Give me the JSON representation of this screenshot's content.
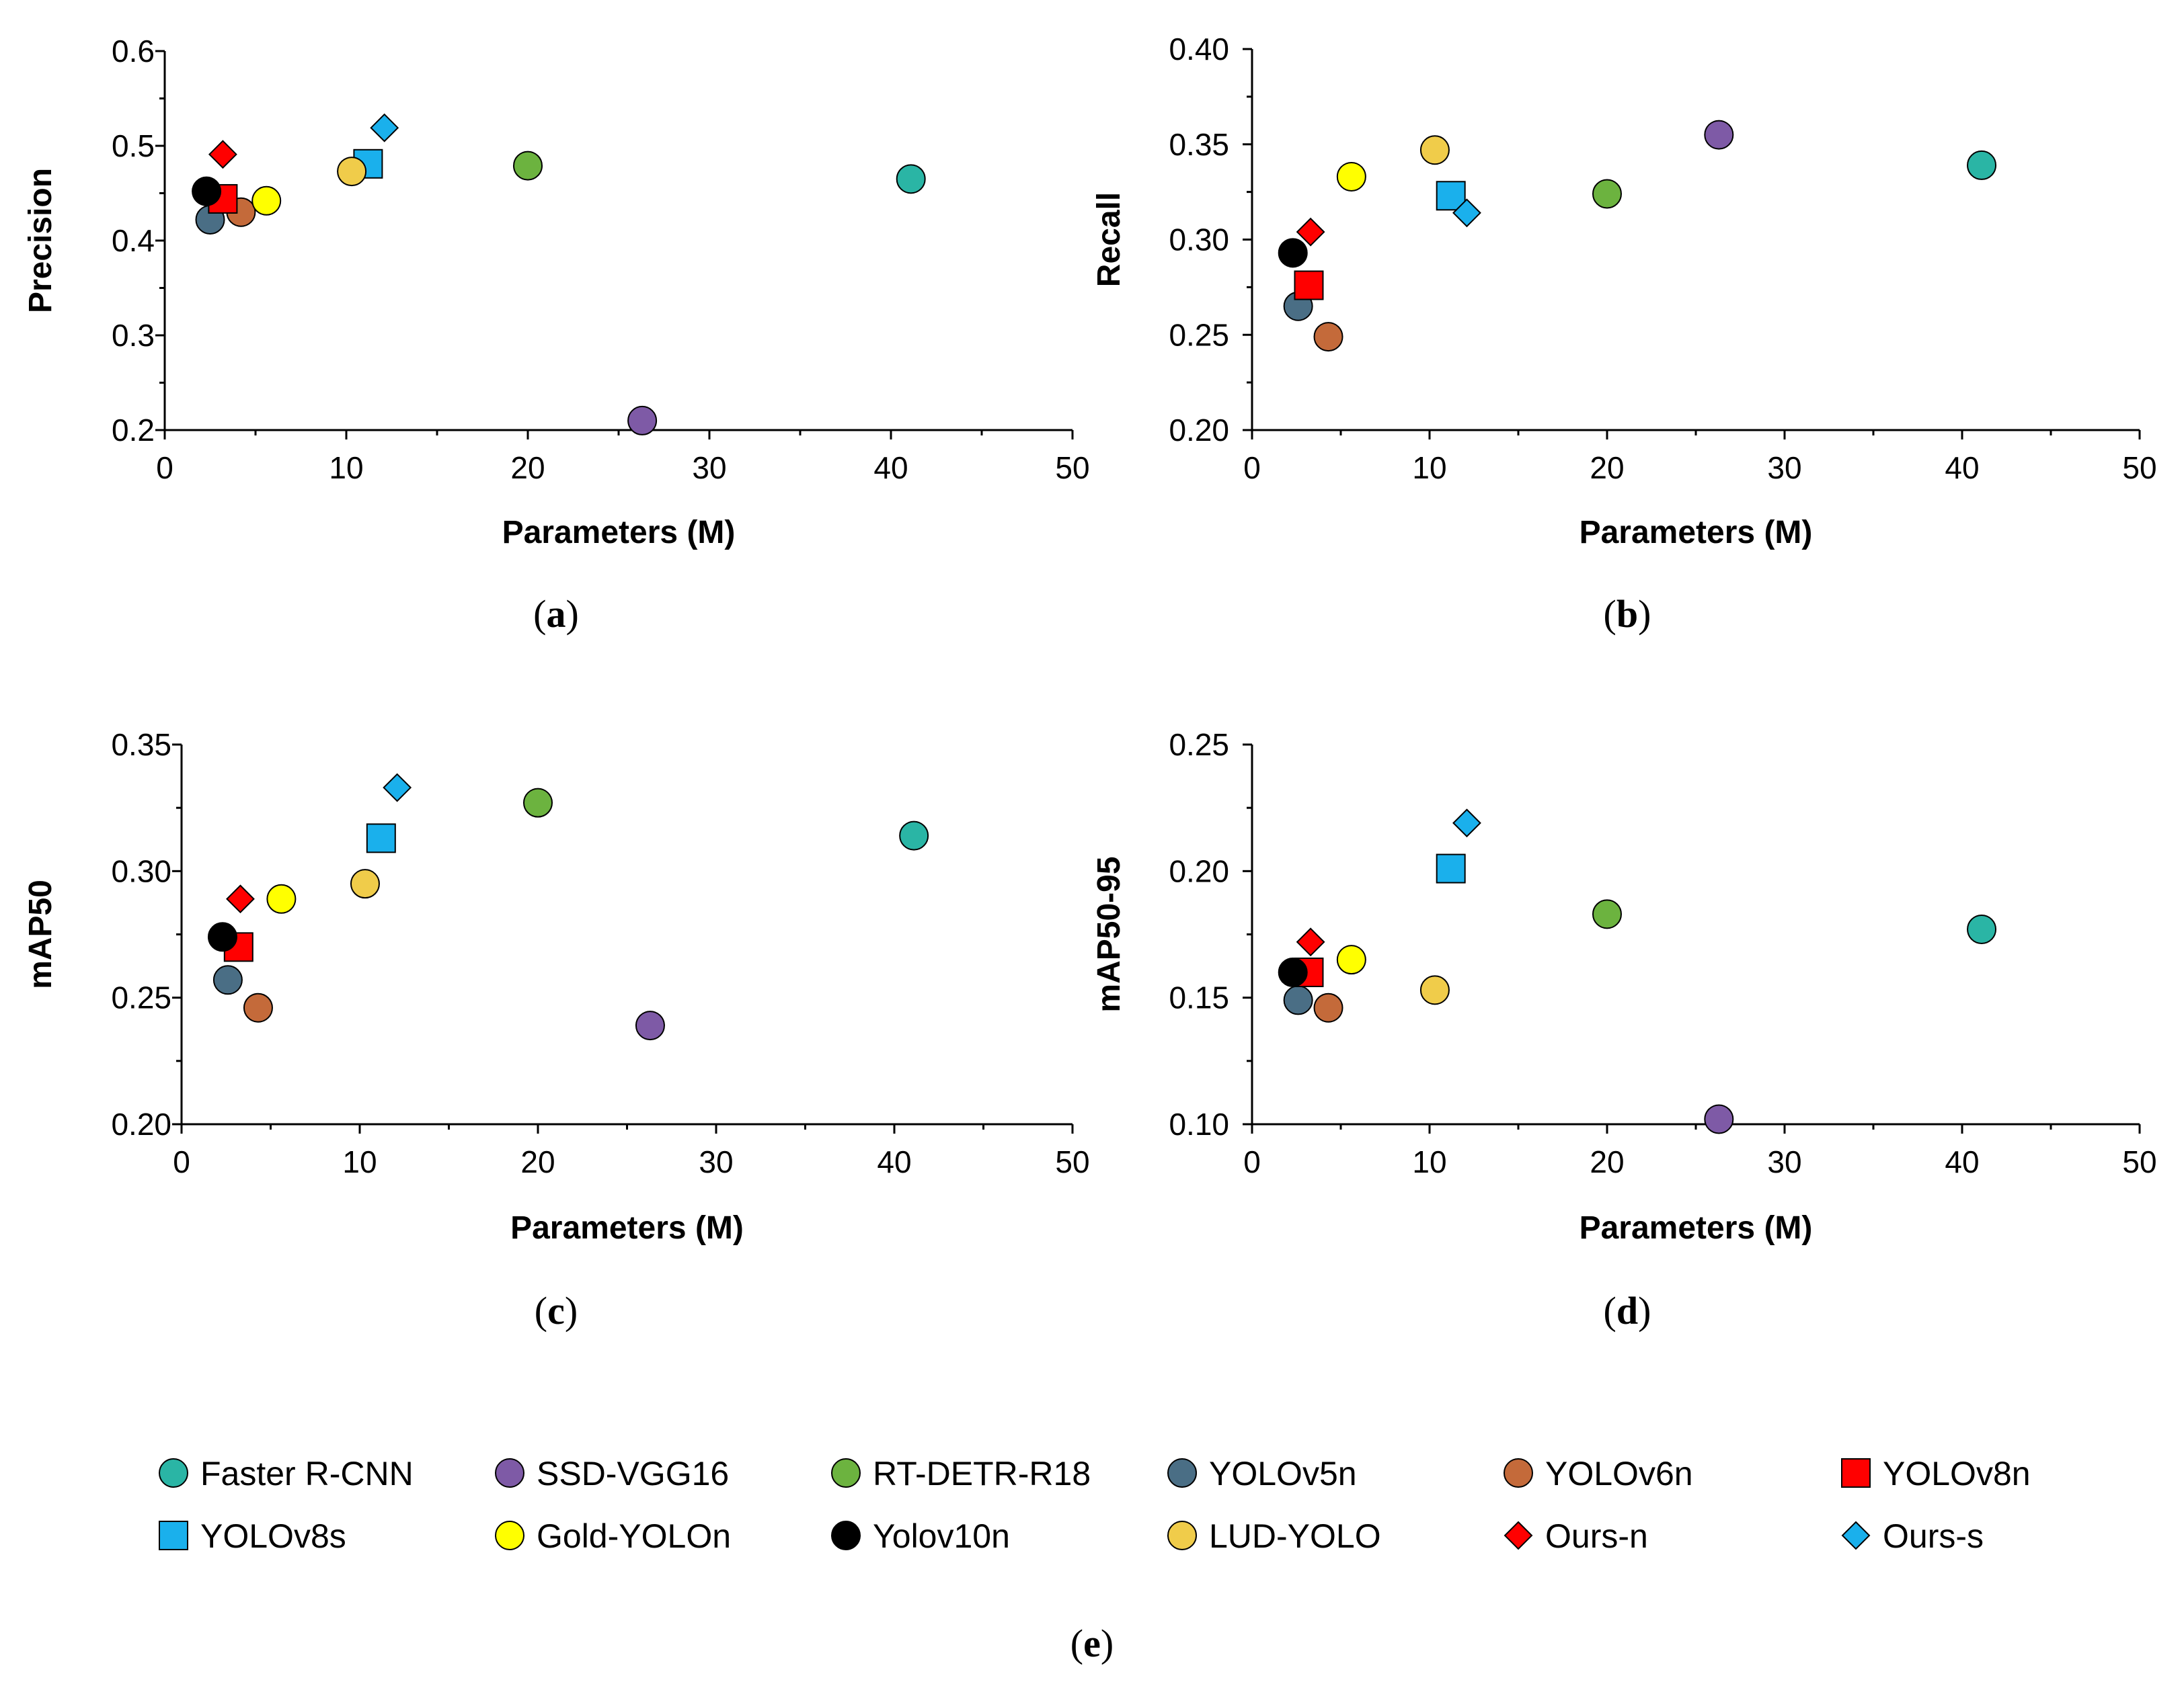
{
  "legend": {
    "label": "(e)",
    "items": [
      {
        "name": "Faster R-CNN",
        "marker": "circle",
        "color": "#2ab5a5"
      },
      {
        "name": "SSD-VGG16",
        "marker": "circle",
        "color": "#7e5aa6"
      },
      {
        "name": "RT-DETR-R18",
        "marker": "circle",
        "color": "#6cb33f"
      },
      {
        "name": "YOLOv5n",
        "marker": "circle",
        "color": "#4a6e85"
      },
      {
        "name": "YOLOv6n",
        "marker": "circle",
        "color": "#c46a3a"
      },
      {
        "name": "YOLOv8n",
        "marker": "square",
        "color": "#ff0000"
      },
      {
        "name": "YOLOv8s",
        "marker": "square",
        "color": "#1ab0ec"
      },
      {
        "name": "Gold-YOLOn",
        "marker": "circle",
        "color": "#ffff00"
      },
      {
        "name": "Yolov10n",
        "marker": "circle",
        "color": "#000000"
      },
      {
        "name": "LUD-YOLO",
        "marker": "circle",
        "color": "#f0cc4a"
      },
      {
        "name": "Ours-n",
        "marker": "diamond",
        "color": "#ff0000"
      },
      {
        "name": "Ours-s",
        "marker": "diamond",
        "color": "#1ab0ec"
      }
    ]
  },
  "chart_data": [
    {
      "type": "scatter",
      "id": "a",
      "label": "(a)",
      "xlabel": "Parameters (M)",
      "ylabel": "Precision",
      "xlim": [
        0,
        50
      ],
      "ylim": [
        0.2,
        0.6
      ],
      "xticks": [
        "0",
        "10",
        "20",
        "30",
        "40",
        "50"
      ],
      "yticks": [
        "0.2",
        "0.3",
        "0.4",
        "0.5",
        "0.6"
      ],
      "series": [
        {
          "name": "Faster R-CNN",
          "x": 41.1,
          "y": 0.465
        },
        {
          "name": "SSD-VGG16",
          "x": 26.3,
          "y": 0.21
        },
        {
          "name": "RT-DETR-R18",
          "x": 20.0,
          "y": 0.479
        },
        {
          "name": "YOLOv5n",
          "x": 2.5,
          "y": 0.422
        },
        {
          "name": "YOLOv6n",
          "x": 4.2,
          "y": 0.43
        },
        {
          "name": "YOLOv8n",
          "x": 3.2,
          "y": 0.444
        },
        {
          "name": "YOLOv8s",
          "x": 11.2,
          "y": 0.481
        },
        {
          "name": "Gold-YOLOn",
          "x": 5.6,
          "y": 0.442
        },
        {
          "name": "Yolov10n",
          "x": 2.3,
          "y": 0.452
        },
        {
          "name": "LUD-YOLO",
          "x": 10.3,
          "y": 0.473
        },
        {
          "name": "Ours-n",
          "x": 3.2,
          "y": 0.491
        },
        {
          "name": "Ours-s",
          "x": 12.1,
          "y": 0.519
        }
      ]
    },
    {
      "type": "scatter",
      "id": "b",
      "label": "(b)",
      "xlabel": "Parameters (M)",
      "ylabel": "Recall",
      "xlim": [
        0,
        50
      ],
      "ylim": [
        0.2,
        0.4
      ],
      "xticks": [
        "0",
        "10",
        "20",
        "30",
        "40",
        "50"
      ],
      "yticks": [
        "0.20",
        "0.25",
        "0.30",
        "0.35",
        "0.40"
      ],
      "series": [
        {
          "name": "Faster R-CNN",
          "x": 41.1,
          "y": 0.339
        },
        {
          "name": "SSD-VGG16",
          "x": 26.3,
          "y": 0.355
        },
        {
          "name": "RT-DETR-R18",
          "x": 20.0,
          "y": 0.324
        },
        {
          "name": "YOLOv5n",
          "x": 2.6,
          "y": 0.265
        },
        {
          "name": "YOLOv6n",
          "x": 4.3,
          "y": 0.249
        },
        {
          "name": "YOLOv8n",
          "x": 3.2,
          "y": 0.276
        },
        {
          "name": "YOLOv8s",
          "x": 11.2,
          "y": 0.323
        },
        {
          "name": "Gold-YOLOn",
          "x": 5.6,
          "y": 0.333
        },
        {
          "name": "Yolov10n",
          "x": 2.3,
          "y": 0.293
        },
        {
          "name": "LUD-YOLO",
          "x": 10.3,
          "y": 0.347
        },
        {
          "name": "Ours-n",
          "x": 3.3,
          "y": 0.304
        },
        {
          "name": "Ours-s",
          "x": 12.1,
          "y": 0.314
        }
      ]
    },
    {
      "type": "scatter",
      "id": "c",
      "label": "(c)",
      "xlabel": "Parameters (M)",
      "ylabel": "mAP50",
      "xlim": [
        0,
        50
      ],
      "ylim": [
        0.2,
        0.35
      ],
      "xticks": [
        "0",
        "10",
        "20",
        "30",
        "40",
        "50"
      ],
      "yticks": [
        "0.20",
        "0.25",
        "0.30",
        "0.35"
      ],
      "series": [
        {
          "name": "Faster R-CNN",
          "x": 41.1,
          "y": 0.314
        },
        {
          "name": "SSD-VGG16",
          "x": 26.3,
          "y": 0.239
        },
        {
          "name": "RT-DETR-R18",
          "x": 20.0,
          "y": 0.327
        },
        {
          "name": "YOLOv5n",
          "x": 2.6,
          "y": 0.257
        },
        {
          "name": "YOLOv6n",
          "x": 4.3,
          "y": 0.246
        },
        {
          "name": "YOLOv8n",
          "x": 3.2,
          "y": 0.27
        },
        {
          "name": "YOLOv8s",
          "x": 11.2,
          "y": 0.313
        },
        {
          "name": "Gold-YOLOn",
          "x": 5.6,
          "y": 0.289
        },
        {
          "name": "Yolov10n",
          "x": 2.3,
          "y": 0.274
        },
        {
          "name": "LUD-YOLO",
          "x": 10.3,
          "y": 0.295
        },
        {
          "name": "Ours-n",
          "x": 3.3,
          "y": 0.289
        },
        {
          "name": "Ours-s",
          "x": 12.1,
          "y": 0.333
        }
      ]
    },
    {
      "type": "scatter",
      "id": "d",
      "label": "(d)",
      "xlabel": "Parameters (M)",
      "ylabel": "mAP50-95",
      "xlim": [
        0,
        50
      ],
      "ylim": [
        0.1,
        0.25
      ],
      "xticks": [
        "0",
        "10",
        "20",
        "30",
        "40",
        "50"
      ],
      "yticks": [
        "0.10",
        "0.15",
        "0.20",
        "0.25"
      ],
      "series": [
        {
          "name": "Faster R-CNN",
          "x": 41.1,
          "y": 0.177
        },
        {
          "name": "SSD-VGG16",
          "x": 26.3,
          "y": 0.102
        },
        {
          "name": "RT-DETR-R18",
          "x": 20.0,
          "y": 0.183
        },
        {
          "name": "YOLOv5n",
          "x": 2.6,
          "y": 0.149
        },
        {
          "name": "YOLOv6n",
          "x": 4.3,
          "y": 0.146
        },
        {
          "name": "YOLOv8n",
          "x": 3.2,
          "y": 0.16
        },
        {
          "name": "YOLOv8s",
          "x": 11.2,
          "y": 0.201
        },
        {
          "name": "Gold-YOLOn",
          "x": 5.6,
          "y": 0.165
        },
        {
          "name": "Yolov10n",
          "x": 2.3,
          "y": 0.16
        },
        {
          "name": "LUD-YOLO",
          "x": 10.3,
          "y": 0.153
        },
        {
          "name": "Ours-n",
          "x": 3.3,
          "y": 0.172
        },
        {
          "name": "Ours-s",
          "x": 12.1,
          "y": 0.219
        }
      ]
    }
  ]
}
